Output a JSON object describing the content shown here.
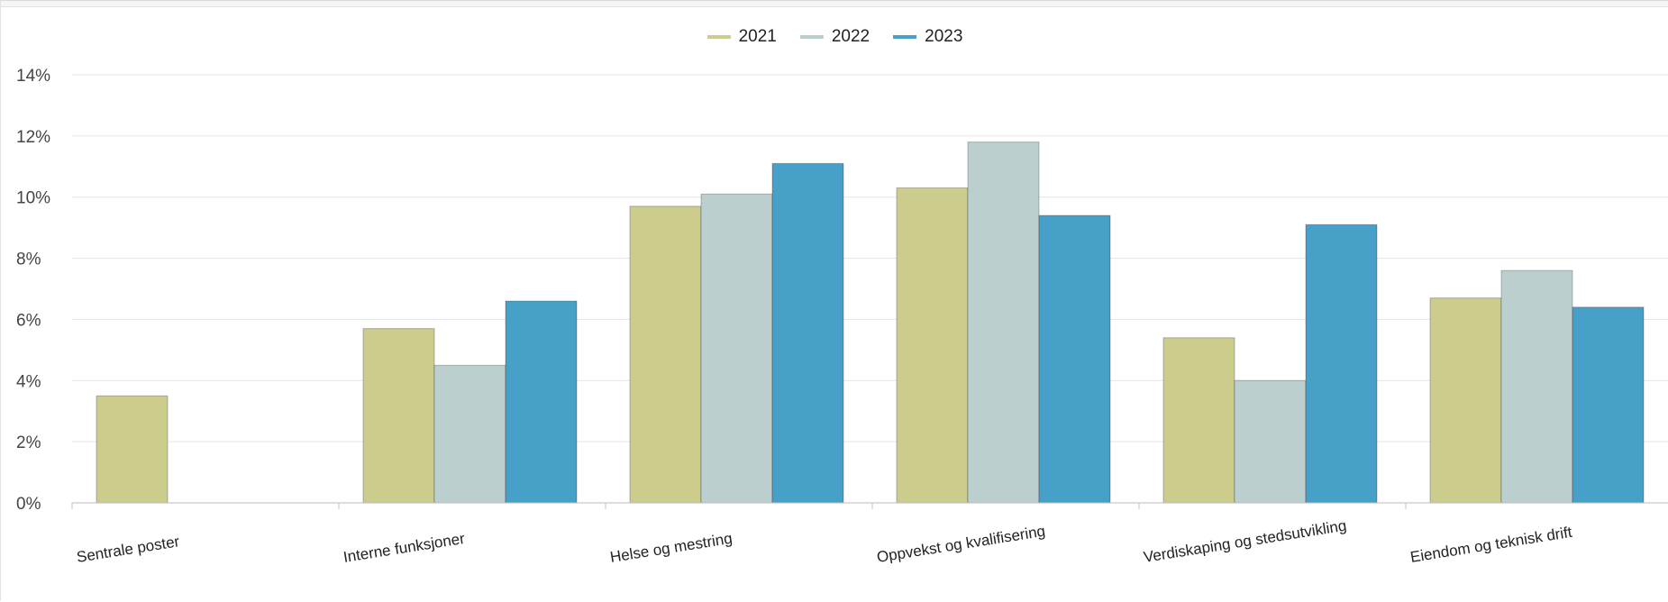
{
  "legend": [
    {
      "label": "2021",
      "color": "#cccc8c"
    },
    {
      "label": "2022",
      "color": "#bccfcf"
    },
    {
      "label": "2023",
      "color": "#46a0c8"
    }
  ],
  "chart_data": {
    "type": "bar",
    "categories": [
      "Sentrale poster",
      "Interne funksjoner",
      "Helse og mestring",
      "Oppvekst og kvalifisering",
      "Verdiskaping og stedsutvikling",
      "Eiendom og teknisk drift"
    ],
    "series": [
      {
        "name": "2021",
        "color": "#cccc8c",
        "values": [
          3.5,
          5.7,
          9.7,
          10.3,
          5.4,
          6.7
        ]
      },
      {
        "name": "2022",
        "color": "#bccfcf",
        "values": [
          0,
          4.5,
          10.1,
          11.8,
          4.0,
          7.6
        ]
      },
      {
        "name": "2023",
        "color": "#46a0c8",
        "values": [
          0,
          6.6,
          11.1,
          9.4,
          9.1,
          6.4
        ]
      }
    ],
    "ylim": [
      0,
      14
    ],
    "yticks": [
      "0%",
      "2%",
      "4%",
      "6%",
      "8%",
      "10%",
      "12%",
      "14%"
    ],
    "grid": true,
    "legend_position": "top-center"
  }
}
